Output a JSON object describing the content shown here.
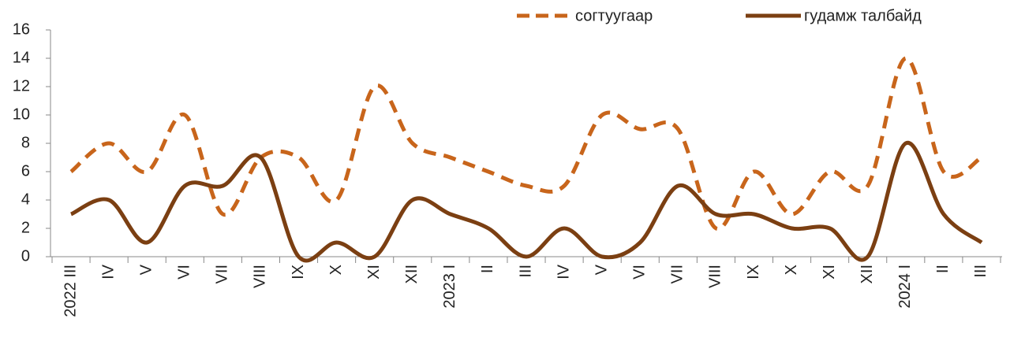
{
  "chart_data": {
    "type": "line",
    "categories": [
      "2022 III",
      "IV",
      "V",
      "VI",
      "VII",
      "VIII",
      "IX",
      "X",
      "XI",
      "XII",
      "2023 I",
      "II",
      "III",
      "IV",
      "V",
      "VI",
      "VII",
      "VIII",
      "IX",
      "X",
      "XI",
      "XII",
      "2024 I",
      "II",
      "III"
    ],
    "series": [
      {
        "name": "согтуугаар",
        "color": "#c8651b",
        "dashed": true,
        "values": [
          6,
          8,
          6,
          10,
          3,
          7,
          7,
          4,
          12,
          8,
          7,
          6,
          5,
          5,
          10,
          9,
          9,
          2,
          6,
          3,
          6,
          5,
          14,
          6,
          7
        ]
      },
      {
        "name": "гудамж талбайд",
        "color": "#7b3f12",
        "dashed": false,
        "values": [
          3,
          4,
          1,
          5,
          5,
          7,
          0,
          1,
          0,
          4,
          3,
          2,
          0,
          2,
          0,
          1,
          5,
          3,
          3,
          2,
          2,
          0,
          8,
          3,
          1
        ]
      }
    ],
    "ylim": [
      0,
      16
    ],
    "yticks": [
      0,
      2,
      4,
      6,
      8,
      10,
      12,
      14,
      16
    ],
    "smooth": true
  }
}
